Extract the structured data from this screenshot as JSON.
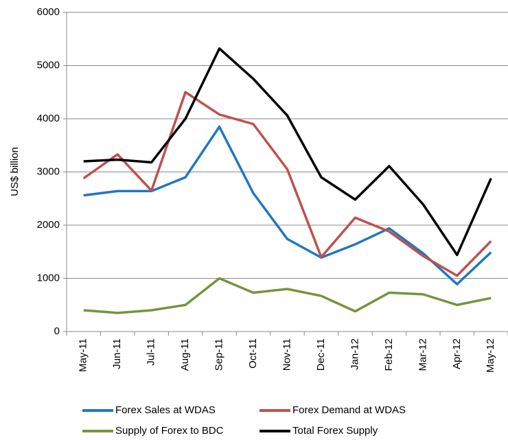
{
  "chart_data": {
    "type": "line",
    "y_label": "US$ billion",
    "categories": [
      "May-11",
      "Jun-11",
      "Jul-11",
      "Aug-11",
      "Sep-11",
      "Oct-11",
      "Nov-11",
      "Dec-11",
      "Jan-12",
      "Feb-12",
      "Mar-12",
      "Apr-12",
      "May-12"
    ],
    "series": [
      {
        "name": "Forex Sales at WDAS",
        "color": "#1f77c4",
        "values": [
          2560,
          2640,
          2640,
          2900,
          3850,
          2600,
          1740,
          1390,
          1640,
          1940,
          1470,
          890,
          1490
        ]
      },
      {
        "name": "Forex Demand at WDAS",
        "color": "#c0504d",
        "values": [
          2880,
          3330,
          2650,
          4500,
          4080,
          3900,
          3050,
          1400,
          2140,
          1880,
          1420,
          1050,
          1700
        ]
      },
      {
        "name": "Supply of Forex to BDC",
        "color": "#77933c",
        "values": [
          400,
          350,
          400,
          500,
          1000,
          730,
          800,
          670,
          380,
          730,
          700,
          500,
          630
        ]
      },
      {
        "name": "Total Forex Supply",
        "color": "#000000",
        "values": [
          3200,
          3230,
          3180,
          4000,
          5320,
          4750,
          4060,
          2900,
          2480,
          3110,
          2390,
          1440,
          2880
        ]
      }
    ],
    "ylim": [
      0,
      6000
    ],
    "yticks": [
      0,
      1000,
      2000,
      3000,
      4000,
      5000,
      6000
    ],
    "grid": true,
    "legend": "bottom"
  }
}
